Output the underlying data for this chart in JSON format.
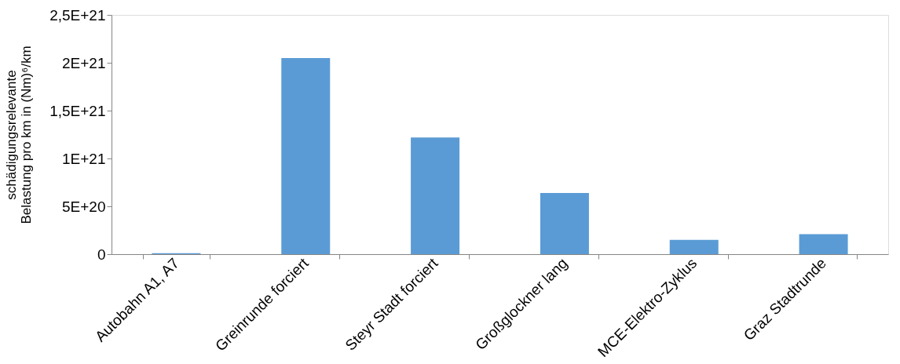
{
  "chart_data": {
    "type": "bar",
    "ylabel": "schädigungsrelevante Belastung pro km in (Nm)⁶/km",
    "categories": [
      "Autobahn A1, A7",
      "Greinrunde forciert",
      "Steyr Stadt forciert",
      "Großglockner lang",
      "MCE-Elektro-Zyklus",
      "Graz Stadtrunde"
    ],
    "values": [
      1e+19,
      2.05e+21,
      1.22e+21,
      6.4e+20,
      1.5e+20,
      2.1e+20
    ],
    "color": "#5b9bd5",
    "ylim": [
      0,
      2.5e+21
    ],
    "yticks": [
      {
        "value": 0,
        "label": "0"
      },
      {
        "value": 5e+20,
        "label": "5E+20"
      },
      {
        "value": 1e+21,
        "label": "1E+21"
      },
      {
        "value": 1.5e+21,
        "label": "1,5E+21"
      },
      {
        "value": 2e+21,
        "label": "2E+21"
      },
      {
        "value": 2.5e+21,
        "label": "2,5E+21"
      }
    ],
    "grid": false
  }
}
